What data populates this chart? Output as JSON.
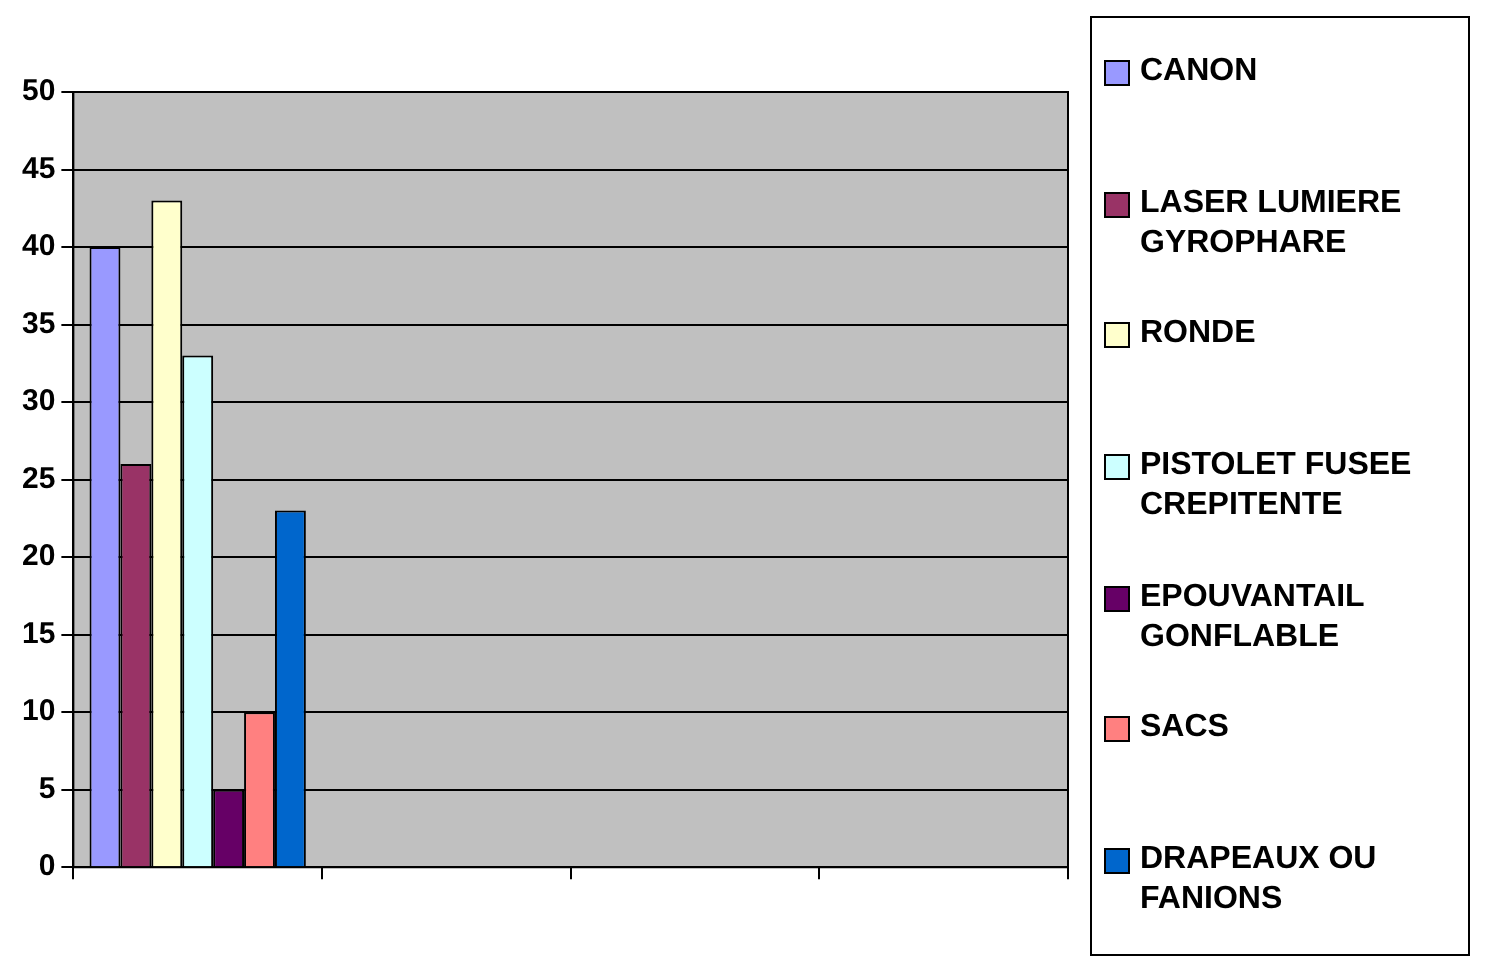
{
  "chart_data": {
    "type": "bar",
    "categories": [
      null,
      null,
      null,
      null
    ],
    "series": [
      {
        "name": "CANON",
        "color": "#9999ff",
        "values": [
          40,
          null,
          null,
          null
        ]
      },
      {
        "name": "LASER LUMIERE GYROPHARE",
        "color": "#993366",
        "values": [
          26,
          null,
          null,
          null
        ]
      },
      {
        "name": "RONDE",
        "color": "#ffffcc",
        "values": [
          43,
          null,
          null,
          null
        ]
      },
      {
        "name": "PISTOLET FUSEE CREPITENTE",
        "color": "#ccffff",
        "values": [
          33,
          null,
          null,
          null
        ]
      },
      {
        "name": "EPOUVANTAIL GONFLABLE",
        "color": "#660066",
        "values": [
          5,
          null,
          null,
          null
        ]
      },
      {
        "name": "SACS",
        "color": "#ff8080",
        "values": [
          10,
          null,
          null,
          null
        ]
      },
      {
        "name": "DRAPEAUX OU FANIONS",
        "color": "#0066cc",
        "values": [
          23,
          null,
          null,
          null
        ]
      }
    ],
    "ylim": [
      0,
      50
    ],
    "yticks": [
      0,
      5,
      10,
      15,
      20,
      25,
      30,
      35,
      40,
      45,
      50
    ],
    "grid": "y",
    "legend": "right"
  }
}
